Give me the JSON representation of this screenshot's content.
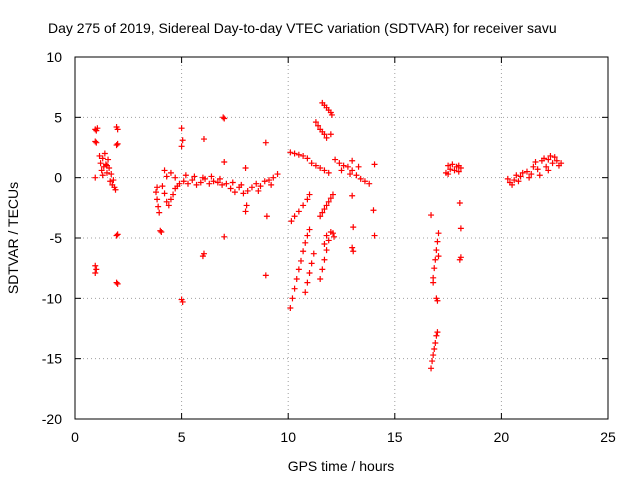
{
  "chart_data": {
    "type": "scatter",
    "title": "Day 275 of 2019, Sidereal Day-to-day VTEC variation (SDTVAR) for receiver savu",
    "xlabel": "GPS time / hours",
    "ylabel": "SDTVAR / TECUs",
    "xlim": [
      0,
      25
    ],
    "ylim": [
      -20,
      10
    ],
    "xticks": [
      0,
      5,
      10,
      15,
      20,
      25
    ],
    "yticks": [
      -20,
      -15,
      -10,
      -5,
      0,
      5,
      10
    ],
    "grid": true,
    "marker": "plus",
    "color": "#ff0000",
    "series": [
      {
        "name": "savu",
        "points": [
          [
            0.95,
            4.0
          ],
          [
            1.0,
            3.9
          ],
          [
            1.05,
            4.1
          ],
          [
            0.95,
            3.0
          ],
          [
            1.0,
            2.9
          ],
          [
            0.95,
            0.0
          ],
          [
            0.95,
            -7.3
          ],
          [
            1.0,
            -7.6
          ],
          [
            0.95,
            -7.9
          ],
          [
            1.15,
            1.8
          ],
          [
            1.2,
            1.2
          ],
          [
            1.25,
            0.6
          ],
          [
            1.3,
            1.6
          ],
          [
            1.35,
            0.9
          ],
          [
            1.4,
            2.0
          ],
          [
            1.45,
            1.1
          ],
          [
            1.5,
            0.4
          ],
          [
            1.55,
            1.5
          ],
          [
            1.6,
            0.8
          ],
          [
            1.65,
            -0.3
          ],
          [
            1.7,
            0.3
          ],
          [
            1.75,
            -0.6
          ],
          [
            1.8,
            -0.2
          ],
          [
            1.85,
            -0.8
          ],
          [
            1.9,
            -1.0
          ],
          [
            1.3,
            0.2
          ],
          [
            1.5,
            1.0
          ],
          [
            1.95,
            4.2
          ],
          [
            2.0,
            4.0
          ],
          [
            1.95,
            2.7
          ],
          [
            2.0,
            2.8
          ],
          [
            1.95,
            -4.8
          ],
          [
            2.0,
            -4.7
          ],
          [
            1.95,
            -8.7
          ],
          [
            2.0,
            -8.8
          ],
          [
            3.8,
            -1.2
          ],
          [
            3.85,
            -1.8
          ],
          [
            3.9,
            -2.4
          ],
          [
            3.95,
            -2.9
          ],
          [
            3.85,
            -0.8
          ],
          [
            4.0,
            -4.4
          ],
          [
            4.05,
            -4.5
          ],
          [
            4.1,
            -0.7
          ],
          [
            4.2,
            -1.3
          ],
          [
            4.3,
            -2.0
          ],
          [
            4.4,
            -2.3
          ],
          [
            4.5,
            -1.8
          ],
          [
            4.6,
            -1.4
          ],
          [
            4.7,
            -0.9
          ],
          [
            4.8,
            -0.7
          ],
          [
            4.9,
            -0.5
          ],
          [
            4.3,
            0.1
          ],
          [
            4.5,
            0.4
          ],
          [
            4.7,
            0.0
          ],
          [
            4.2,
            0.6
          ],
          [
            5.0,
            4.1
          ],
          [
            5.05,
            3.1
          ],
          [
            5.0,
            2.6
          ],
          [
            5.0,
            -10.1
          ],
          [
            5.05,
            -10.3
          ],
          [
            5.1,
            -0.3
          ],
          [
            5.3,
            -0.5
          ],
          [
            5.5,
            -0.2
          ],
          [
            5.7,
            -0.6
          ],
          [
            5.9,
            -0.4
          ],
          [
            6.1,
            -0.1
          ],
          [
            6.3,
            -0.5
          ],
          [
            6.5,
            -0.3
          ],
          [
            6.7,
            -0.4
          ],
          [
            6.9,
            -0.6
          ],
          [
            5.2,
            0.2
          ],
          [
            5.6,
            0.1
          ],
          [
            6.0,
            0.0
          ],
          [
            6.4,
            0.1
          ],
          [
            6.8,
            -0.1
          ],
          [
            6.05,
            3.2
          ],
          [
            6.05,
            -6.3
          ],
          [
            6.0,
            -6.5
          ],
          [
            6.95,
            5.0
          ],
          [
            7.0,
            4.9
          ],
          [
            7.0,
            1.3
          ],
          [
            7.0,
            -4.9
          ],
          [
            7.1,
            -0.5
          ],
          [
            7.3,
            -0.9
          ],
          [
            7.5,
            -1.2
          ],
          [
            7.7,
            -0.8
          ],
          [
            7.9,
            -1.3
          ],
          [
            8.1,
            -1.1
          ],
          [
            7.4,
            -0.4
          ],
          [
            7.8,
            -0.6
          ],
          [
            8.0,
            0.8
          ],
          [
            8.05,
            -2.3
          ],
          [
            8.0,
            -2.8
          ],
          [
            8.3,
            -0.8
          ],
          [
            8.5,
            -0.5
          ],
          [
            8.7,
            -0.7
          ],
          [
            8.9,
            -0.3
          ],
          [
            9.1,
            -0.2
          ],
          [
            9.3,
            0.0
          ],
          [
            9.5,
            0.3
          ],
          [
            8.6,
            -1.1
          ],
          [
            9.2,
            -0.6
          ],
          [
            8.95,
            2.9
          ],
          [
            9.0,
            -3.2
          ],
          [
            8.95,
            -8.1
          ],
          [
            10.1,
            2.1
          ],
          [
            10.3,
            2.0
          ],
          [
            10.5,
            1.9
          ],
          [
            10.7,
            1.8
          ],
          [
            10.9,
            1.6
          ],
          [
            11.1,
            1.2
          ],
          [
            11.3,
            1.0
          ],
          [
            11.5,
            0.8
          ],
          [
            11.7,
            0.6
          ],
          [
            11.9,
            0.4
          ],
          [
            10.15,
            -3.6
          ],
          [
            10.3,
            -3.2
          ],
          [
            10.5,
            -2.8
          ],
          [
            10.7,
            -2.3
          ],
          [
            10.9,
            -1.8
          ],
          [
            11.0,
            -1.4
          ],
          [
            10.1,
            -10.8
          ],
          [
            10.2,
            -10.0
          ],
          [
            10.3,
            -9.2
          ],
          [
            10.4,
            -8.4
          ],
          [
            10.5,
            -7.6
          ],
          [
            10.6,
            -6.9
          ],
          [
            10.7,
            -6.1
          ],
          [
            10.8,
            -5.4
          ],
          [
            10.9,
            -4.8
          ],
          [
            11.0,
            -4.3
          ],
          [
            10.8,
            -9.5
          ],
          [
            10.9,
            -8.7
          ],
          [
            11.0,
            -7.9
          ],
          [
            11.1,
            -7.1
          ],
          [
            11.2,
            -6.3
          ],
          [
            11.5,
            -8.4
          ],
          [
            11.6,
            -7.6
          ],
          [
            11.7,
            -6.8
          ],
          [
            11.8,
            -6.0
          ],
          [
            11.9,
            -5.2
          ],
          [
            12.0,
            -4.5
          ],
          [
            11.5,
            -3.2
          ],
          [
            11.6,
            -2.9
          ],
          [
            11.7,
            -2.6
          ],
          [
            11.8,
            -2.3
          ],
          [
            11.9,
            -2.0
          ],
          [
            12.0,
            -1.7
          ],
          [
            12.1,
            -1.4
          ],
          [
            11.7,
            -5.5
          ],
          [
            11.8,
            -4.8
          ],
          [
            11.6,
            6.2
          ],
          [
            11.7,
            6.0
          ],
          [
            11.8,
            5.8
          ],
          [
            11.9,
            5.6
          ],
          [
            12.0,
            5.4
          ],
          [
            12.05,
            5.2
          ],
          [
            11.3,
            4.6
          ],
          [
            11.4,
            4.3
          ],
          [
            11.5,
            4.0
          ],
          [
            11.6,
            3.8
          ],
          [
            11.7,
            3.6
          ],
          [
            11.8,
            3.3
          ],
          [
            12.0,
            3.6
          ],
          [
            12.2,
            1.5
          ],
          [
            12.4,
            1.2
          ],
          [
            12.6,
            1.0
          ],
          [
            12.8,
            0.9
          ],
          [
            13.0,
            0.6
          ],
          [
            13.2,
            0.2
          ],
          [
            13.4,
            -0.1
          ],
          [
            13.6,
            -0.3
          ],
          [
            13.8,
            -0.5
          ],
          [
            12.5,
            0.6
          ],
          [
            12.9,
            0.3
          ],
          [
            13.3,
            0.9
          ],
          [
            12.1,
            -4.6
          ],
          [
            12.15,
            -4.9
          ],
          [
            13.0,
            -1.5
          ],
          [
            13.05,
            -4.1
          ],
          [
            13.0,
            -5.8
          ],
          [
            13.05,
            -6.1
          ],
          [
            13.0,
            1.4
          ],
          [
            14.05,
            1.1
          ],
          [
            14.0,
            -2.7
          ],
          [
            14.05,
            -4.8
          ],
          [
            16.7,
            -3.1
          ],
          [
            16.8,
            -8.3
          ],
          [
            16.85,
            -7.5
          ],
          [
            16.9,
            -6.8
          ],
          [
            16.95,
            -6.0
          ],
          [
            17.0,
            -5.3
          ],
          [
            17.05,
            -4.6
          ],
          [
            16.8,
            -8.7
          ],
          [
            16.7,
            -15.8
          ],
          [
            16.75,
            -15.2
          ],
          [
            16.8,
            -14.7
          ],
          [
            16.85,
            -14.2
          ],
          [
            16.9,
            -13.7
          ],
          [
            16.95,
            -13.1
          ],
          [
            17.0,
            -12.8
          ],
          [
            16.95,
            -10.0
          ],
          [
            17.0,
            -10.2
          ],
          [
            17.05,
            -6.5
          ],
          [
            17.4,
            0.4
          ],
          [
            17.5,
            1.0
          ],
          [
            17.6,
            0.7
          ],
          [
            17.7,
            1.1
          ],
          [
            17.8,
            0.6
          ],
          [
            17.9,
            0.9
          ],
          [
            18.0,
            0.5
          ],
          [
            18.1,
            0.8
          ],
          [
            17.5,
            0.3
          ],
          [
            18.0,
            1.0
          ],
          [
            18.05,
            -2.1
          ],
          [
            18.1,
            -4.2
          ],
          [
            18.05,
            -6.8
          ],
          [
            18.1,
            -6.6
          ],
          [
            20.3,
            -0.1
          ],
          [
            20.4,
            -0.4
          ],
          [
            20.5,
            -0.6
          ],
          [
            20.6,
            -0.2
          ],
          [
            20.7,
            0.2
          ],
          [
            20.8,
            -0.3
          ],
          [
            20.9,
            0.1
          ],
          [
            21.0,
            0.4
          ],
          [
            21.2,
            0.5
          ],
          [
            21.3,
            0.0
          ],
          [
            21.4,
            0.3
          ],
          [
            21.5,
            0.9
          ],
          [
            21.6,
            1.3
          ],
          [
            21.7,
            0.7
          ],
          [
            21.8,
            0.2
          ],
          [
            21.9,
            1.4
          ],
          [
            22.0,
            1.6
          ],
          [
            22.1,
            0.9
          ],
          [
            22.2,
            1.5
          ],
          [
            22.3,
            1.8
          ],
          [
            22.4,
            1.2
          ],
          [
            22.5,
            1.7
          ],
          [
            22.6,
            1.4
          ],
          [
            22.7,
            1.0
          ],
          [
            22.8,
            1.2
          ],
          [
            22.2,
            0.6
          ]
        ]
      }
    ]
  }
}
